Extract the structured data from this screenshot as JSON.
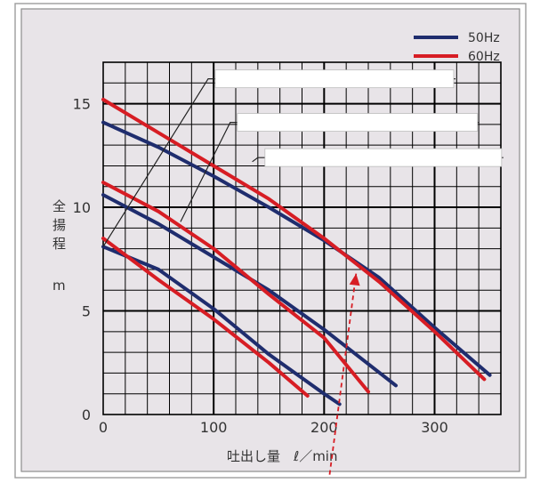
{
  "colors": {
    "background": "#ffffff",
    "panel": "#e8e4e8",
    "grid": "#000000",
    "hz50": "#1f2d6e",
    "hz60": "#d71d24",
    "label_box": "#ffffff",
    "leader": "#222222",
    "arrow": "#d71d24"
  },
  "chart_data": {
    "type": "line",
    "title": "",
    "xlabel": "吐出し量　ℓ／min",
    "ylabel_lines": [
      "全",
      "揚",
      "程",
      "m"
    ],
    "xlim": [
      0,
      360
    ],
    "ylim": [
      0,
      17
    ],
    "x_ticks": [
      0,
      100,
      200,
      300
    ],
    "y_ticks": [
      0,
      5,
      10,
      15
    ],
    "x_tick_labels": [
      "0",
      "100",
      "200",
      "300"
    ],
    "y_tick_labels": [
      "0",
      "5",
      "10",
      "15"
    ],
    "grid": true,
    "legend_position": "top-right",
    "legend": [
      {
        "name": "50Hz",
        "color": "#1f2d6e"
      },
      {
        "name": "60Hz",
        "color": "#d71d24"
      }
    ],
    "series": [
      {
        "legend_group": "50Hz",
        "model_index": 1,
        "color": "#1f2d6e",
        "points": [
          [
            0,
            8.1
          ],
          [
            50,
            7.0
          ],
          [
            100,
            5.1
          ],
          [
            150,
            2.9
          ],
          [
            200,
            1.0
          ],
          [
            214,
            0.5
          ]
        ]
      },
      {
        "legend_group": "60Hz",
        "model_index": 1,
        "color": "#d71d24",
        "points": [
          [
            0,
            8.5
          ],
          [
            50,
            6.5
          ],
          [
            100,
            4.6
          ],
          [
            150,
            2.5
          ],
          [
            185,
            0.9
          ]
        ]
      },
      {
        "legend_group": "50Hz",
        "model_index": 2,
        "color": "#1f2d6e",
        "points": [
          [
            0,
            10.6
          ],
          [
            50,
            9.2
          ],
          [
            100,
            7.6
          ],
          [
            150,
            6.0
          ],
          [
            200,
            4.1
          ],
          [
            265,
            1.4
          ]
        ]
      },
      {
        "legend_group": "60Hz",
        "model_index": 2,
        "color": "#d71d24",
        "points": [
          [
            0,
            11.2
          ],
          [
            50,
            9.8
          ],
          [
            100,
            8.0
          ],
          [
            150,
            5.8
          ],
          [
            200,
            3.7
          ],
          [
            240,
            1.1
          ]
        ]
      },
      {
        "legend_group": "50Hz",
        "model_index": 3,
        "color": "#1f2d6e",
        "points": [
          [
            0,
            14.1
          ],
          [
            50,
            12.9
          ],
          [
            100,
            11.5
          ],
          [
            150,
            10.0
          ],
          [
            200,
            8.4
          ],
          [
            250,
            6.6
          ],
          [
            300,
            4.2
          ],
          [
            350,
            1.9
          ]
        ]
      },
      {
        "legend_group": "60Hz",
        "model_index": 3,
        "color": "#d71d24",
        "points": [
          [
            0,
            15.2
          ],
          [
            50,
            13.6
          ],
          [
            100,
            12.0
          ],
          [
            150,
            10.4
          ],
          [
            200,
            8.5
          ],
          [
            250,
            6.4
          ],
          [
            300,
            4.0
          ],
          [
            345,
            1.7
          ]
        ]
      }
    ],
    "model_labels": [
      {
        "text": "",
        "anchor_x": 0,
        "anchor_y": 8.1,
        "box_x": 95,
        "box_y": 16.2
      },
      {
        "text": "",
        "anchor_x": 70,
        "anchor_y": 9.3,
        "box_x": 115,
        "box_y": 14.1
      },
      {
        "text": "",
        "anchor_x": 135,
        "anchor_y": 12.2,
        "box_x": 140,
        "box_y": 12.4
      }
    ],
    "arrow": {
      "from_x": 205,
      "from_y": -2.9,
      "to_x": 229,
      "to_y": 6.8
    }
  }
}
